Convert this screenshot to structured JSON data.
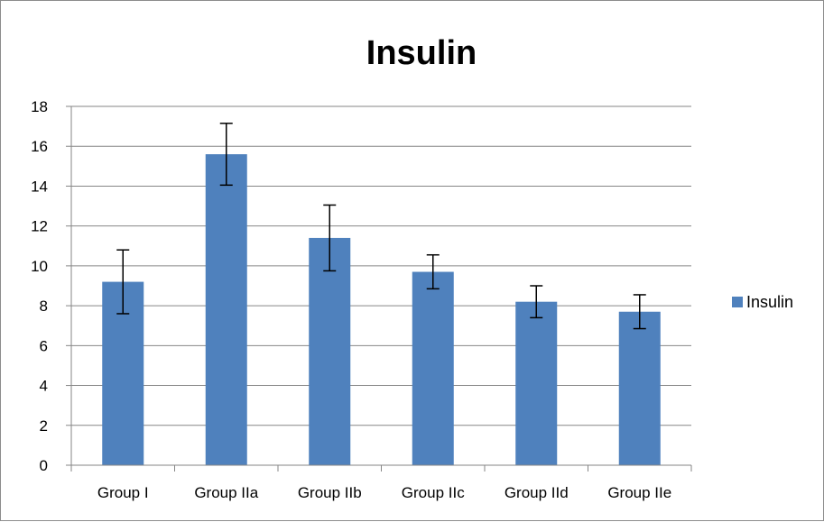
{
  "chart_data": {
    "type": "bar",
    "title": "Insulin",
    "categories": [
      "Group I",
      "Group IIa",
      "Group IIb",
      "Group IIc",
      "Group IId",
      "Group IIe"
    ],
    "series": [
      {
        "name": "Insulin",
        "values": [
          9.2,
          15.6,
          11.4,
          9.7,
          8.2,
          7.7
        ],
        "error": [
          1.6,
          1.55,
          1.65,
          0.85,
          0.8,
          0.85
        ],
        "color": "#4f81bd"
      }
    ],
    "ylim": [
      0,
      18
    ],
    "yticks": [
      0,
      2,
      4,
      6,
      8,
      10,
      12,
      14,
      16,
      18
    ],
    "xlabel": "",
    "ylabel": "",
    "grid": true,
    "legend": "right"
  }
}
